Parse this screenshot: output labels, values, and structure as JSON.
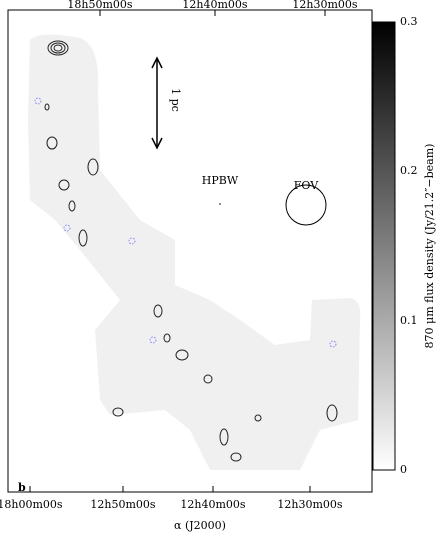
{
  "figure": {
    "top_ticks": [
      "18h50m00s",
      "12h40m00s",
      "12h30m00s"
    ],
    "bottom_ticks": [
      "18h00m00s",
      "12h50m00s",
      "12h40m00s",
      "12h30m00s"
    ],
    "x_label": "α (J2000)",
    "panel_label": "b",
    "scale_label": "1 pc",
    "beam_label": "HPBW",
    "fov_label": "FOV",
    "colorbar_ticks": [
      "0.3",
      "0.2",
      "0.1",
      "0"
    ],
    "colorbar_label": "870 μm flux density (Jy/21.2″−beam)"
  }
}
